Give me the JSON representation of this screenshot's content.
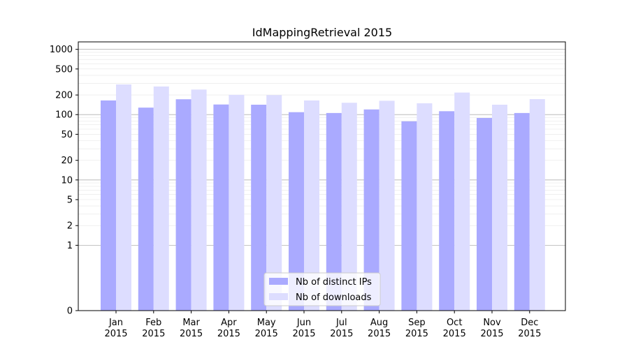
{
  "chart_data": {
    "type": "bar",
    "title": "IdMappingRetrieval 2015",
    "xlabel": "",
    "ylabel": "",
    "yscale": "symlog",
    "ylim": [
      0,
      1300
    ],
    "y_ticks": [
      0,
      1,
      2,
      5,
      10,
      20,
      50,
      100,
      200,
      500,
      1000
    ],
    "y_tick_labels": [
      "0",
      "1",
      "2",
      "5",
      "10",
      "20",
      "50",
      "100",
      "200",
      "500",
      "1000"
    ],
    "categories": [
      "Jan\n2015",
      "Feb\n2015",
      "Mar\n2015",
      "Apr\n2015",
      "May\n2015",
      "Jun\n2015",
      "Jul\n2015",
      "Aug\n2015",
      "Sep\n2015",
      "Oct\n2015",
      "Nov\n2015",
      "Dec\n2015"
    ],
    "series": [
      {
        "name": "Nb of distinct IPs",
        "color": "#aaaaff",
        "values": [
          165,
          128,
          172,
          143,
          142,
          109,
          106,
          120,
          79,
          113,
          89,
          106
        ]
      },
      {
        "name": "Nb of downloads",
        "color": "#ddddff",
        "values": [
          290,
          270,
          242,
          201,
          199,
          165,
          152,
          163,
          149,
          218,
          142,
          173
        ]
      }
    ],
    "grid": true,
    "legend_position": "bottom-center"
  }
}
